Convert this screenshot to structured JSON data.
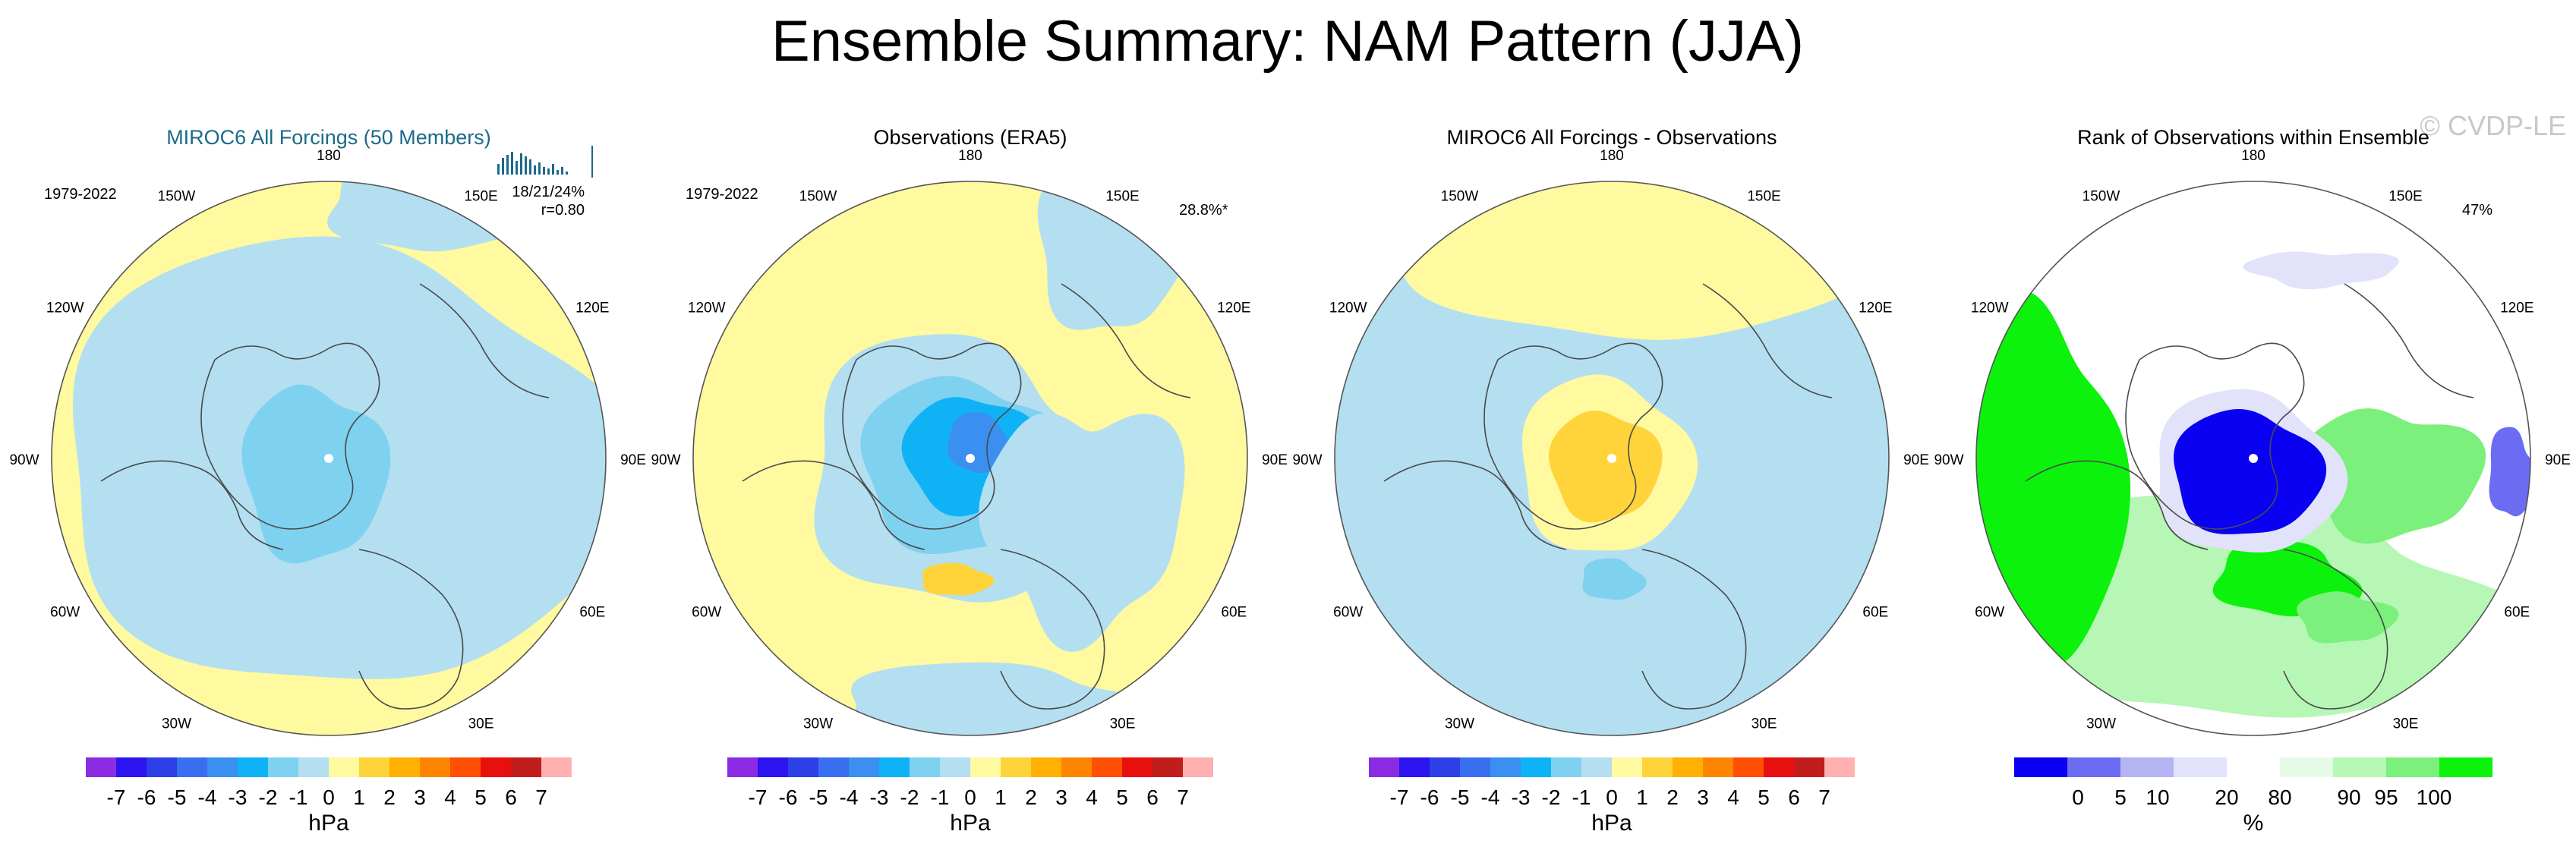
{
  "figure": {
    "title": "Ensemble Summary: NAM Pattern (JJA)",
    "watermark": "© CVDP-LE"
  },
  "lon_labels": [
    "180",
    "150E",
    "120E",
    "90E",
    "60E",
    "30E",
    "0",
    "30W",
    "60W",
    "90W",
    "120W",
    "150W"
  ],
  "pressure_legend": {
    "unit": "hPa",
    "levels": [
      "-7",
      "-6",
      "-5",
      "-4",
      "-3",
      "-2",
      "-1",
      "0",
      "1",
      "2",
      "3",
      "4",
      "5",
      "6",
      "7"
    ],
    "colors": [
      "#8b2be2",
      "#2b14f0",
      "#2d3fe6",
      "#3a6ef0",
      "#3a8ff0",
      "#0fb3f5",
      "#7fd1f0",
      "#b3dff1",
      "#fff9a0",
      "#ffd43b",
      "#ffb000",
      "#ff8400",
      "#ff4f00",
      "#e80f0f",
      "#c21d1d",
      "#ffb0b0"
    ]
  },
  "rank_legend": {
    "unit": "%",
    "levels": [
      "0",
      "5",
      "10",
      "20",
      "80",
      "90",
      "95",
      "100"
    ],
    "colors": [
      "#0a00f2",
      "#6c6cf2",
      "#b4b4f2",
      "#e2e2fa",
      "#ffffff",
      "#e6fbe6",
      "#b6f7b6",
      "#7cf07c",
      "#0cf20c"
    ]
  },
  "panels": [
    {
      "title": "MIROC6 All Forcings (50 Members)",
      "title_color": "#1b6a8a",
      "period": "1979-2022",
      "stat_line1": "18/21/24%",
      "stat_line2": "r=0.80",
      "corner_text": "",
      "legend": "pressure"
    },
    {
      "title": "Observations (ERA5)",
      "title_color": "#000000",
      "period": "1979-2022",
      "stat_line1": "",
      "stat_line2": "",
      "corner_text": "28.8%*",
      "legend": "pressure"
    },
    {
      "title": "MIROC6 All Forcings - Observations",
      "title_color": "#000000",
      "period": "",
      "stat_line1": "",
      "stat_line2": "",
      "corner_text": "",
      "legend": "pressure"
    },
    {
      "title": "Rank of Observations within Ensemble",
      "title_color": "#000000",
      "period": "",
      "stat_line1": "",
      "stat_line2": "",
      "corner_text": "47%",
      "legend": "rank"
    }
  ],
  "chart_data": [
    {
      "type": "heatmap",
      "title": "MIROC6 All Forcings (50 Members)",
      "projection": "north-polar-stereographic",
      "units": "hPa",
      "color_levels": [
        -7,
        -6,
        -5,
        -4,
        -3,
        -2,
        -1,
        0,
        1,
        2,
        3,
        4,
        5,
        6,
        7
      ],
      "annotations": [
        "1979-2022",
        "18/21/24%",
        "r=0.80"
      ]
    },
    {
      "type": "heatmap",
      "title": "Observations (ERA5)",
      "projection": "north-polar-stereographic",
      "units": "hPa",
      "color_levels": [
        -7,
        -6,
        -5,
        -4,
        -3,
        -2,
        -1,
        0,
        1,
        2,
        3,
        4,
        5,
        6,
        7
      ],
      "annotations": [
        "1979-2022",
        "28.8%*"
      ]
    },
    {
      "type": "heatmap",
      "title": "MIROC6 All Forcings - Observations",
      "projection": "north-polar-stereographic",
      "units": "hPa",
      "color_levels": [
        -7,
        -6,
        -5,
        -4,
        -3,
        -2,
        -1,
        0,
        1,
        2,
        3,
        4,
        5,
        6,
        7
      ]
    },
    {
      "type": "heatmap",
      "title": "Rank of Observations within Ensemble",
      "projection": "north-polar-stereographic",
      "units": "%",
      "color_levels": [
        0,
        5,
        10,
        20,
        80,
        90,
        95,
        100
      ],
      "annotations": [
        "47%"
      ]
    }
  ]
}
